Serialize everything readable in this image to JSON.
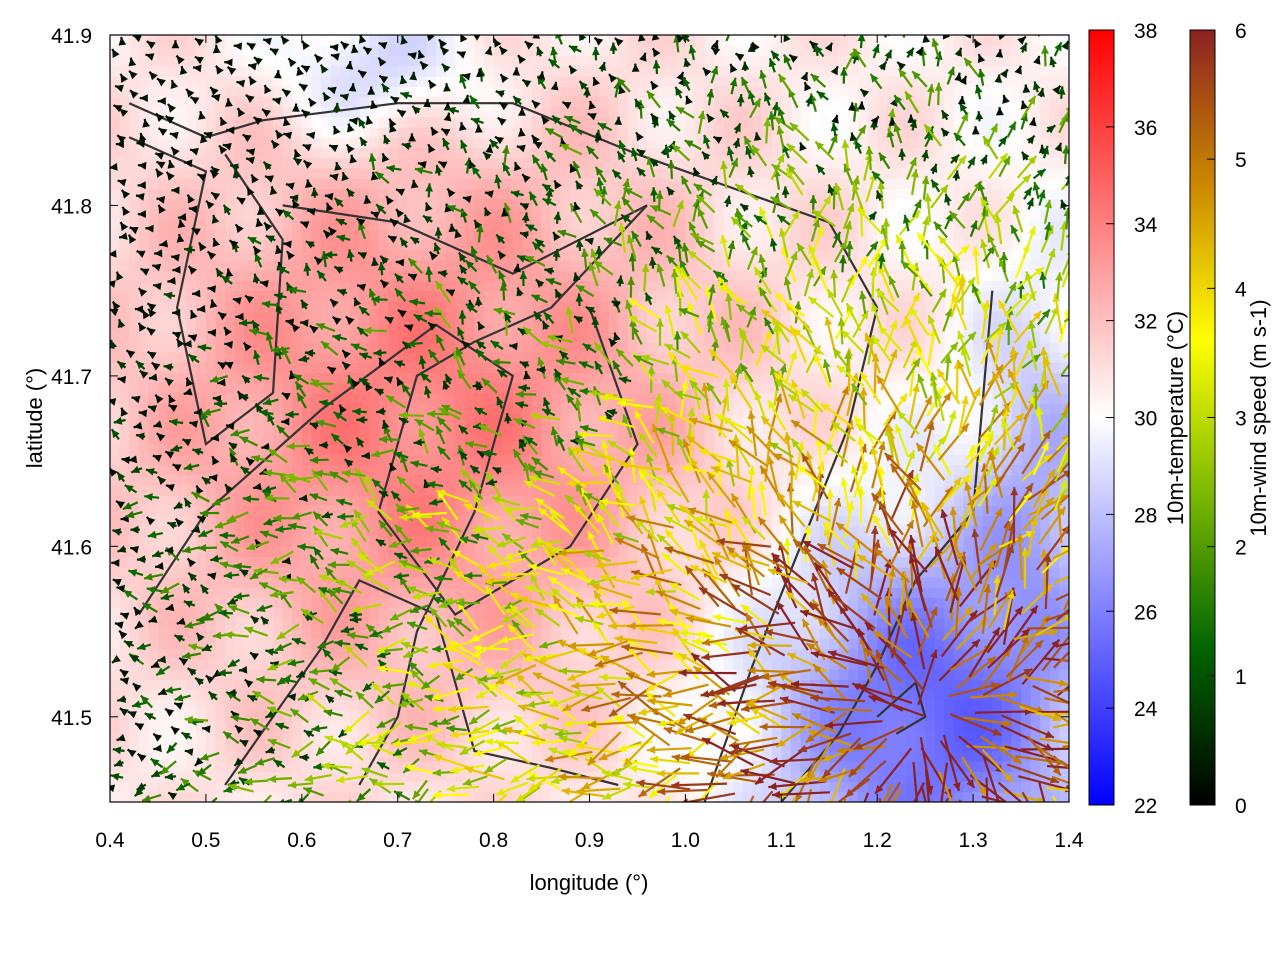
{
  "chart_data": {
    "type": "heatmap",
    "title": "",
    "xlabel": "longitude (°)",
    "ylabel": "latitude (°)",
    "xlim": [
      0.4,
      1.4
    ],
    "ylim": [
      41.45,
      41.9
    ],
    "xticks": [
      "0.4",
      "0.5",
      "0.6",
      "0.7",
      "0.8",
      "0.9",
      "1.0",
      "1.1",
      "1.2",
      "1.3",
      "1.4"
    ],
    "yticks": [
      "41.5",
      "41.6",
      "41.7",
      "41.8",
      "41.9"
    ],
    "colorbars": [
      {
        "label": "10m-temperature (°C)",
        "range": [
          22,
          38
        ],
        "ticks": [
          "22",
          "24",
          "26",
          "28",
          "30",
          "32",
          "34",
          "36",
          "38"
        ],
        "colors": [
          "#0000ff",
          "#ffffff",
          "#ff0000"
        ]
      },
      {
        "label": "10m-wind speed (m s-1)",
        "range": [
          0,
          6
        ],
        "ticks": [
          "0",
          "1",
          "2",
          "3",
          "4",
          "5",
          "6"
        ],
        "colors": [
          "#000000",
          "#006400",
          "#7ab800",
          "#ffff00",
          "#cc8800",
          "#8b2222"
        ]
      }
    ],
    "temperature_field": {
      "description_units": "°C",
      "warm_region": {
        "lon": 0.72,
        "lat": 41.68,
        "value": 34
      },
      "cool_region_southeast": {
        "lon": 1.25,
        "lat": 41.5,
        "value": 25
      },
      "cool_region_north": {
        "lon": 0.68,
        "lat": 41.88,
        "value": 28
      },
      "cool_region_east": {
        "lon": 1.37,
        "lat": 41.65,
        "value": 28
      }
    },
    "contour_lines": [
      {
        "id": "outer-ring",
        "points": [
          [
            0.42,
            41.86
          ],
          [
            0.5,
            41.84
          ],
          [
            0.56,
            41.85
          ],
          [
            0.7,
            41.86
          ],
          [
            0.82,
            41.86
          ],
          [
            0.95,
            41.83
          ],
          [
            1.05,
            41.81
          ],
          [
            1.15,
            41.79
          ],
          [
            1.2,
            41.74
          ],
          [
            1.17,
            41.67
          ],
          [
            1.12,
            41.6
          ],
          [
            1.07,
            41.53
          ],
          [
            1.02,
            41.45
          ]
        ]
      },
      {
        "id": "west-loop",
        "points": [
          [
            0.42,
            41.84
          ],
          [
            0.5,
            41.82
          ],
          [
            0.47,
            41.74
          ],
          [
            0.5,
            41.66
          ],
          [
            0.57,
            41.69
          ],
          [
            0.58,
            41.78
          ],
          [
            0.52,
            41.83
          ]
        ]
      },
      {
        "id": "central-loop",
        "points": [
          [
            0.58,
            41.8
          ],
          [
            0.7,
            41.79
          ],
          [
            0.82,
            41.76
          ],
          [
            0.96,
            41.8
          ],
          [
            0.86,
            41.74
          ],
          [
            0.78,
            41.72
          ],
          [
            0.72,
            41.7
          ],
          [
            0.68,
            41.62
          ],
          [
            0.76,
            41.56
          ],
          [
            0.88,
            41.6
          ],
          [
            0.95,
            41.66
          ],
          [
            0.9,
            41.74
          ]
        ]
      },
      {
        "id": "inner-south",
        "points": [
          [
            0.43,
            41.56
          ],
          [
            0.5,
            41.62
          ],
          [
            0.62,
            41.68
          ],
          [
            0.74,
            41.73
          ],
          [
            0.82,
            41.7
          ],
          [
            0.78,
            41.62
          ],
          [
            0.72,
            41.55
          ],
          [
            0.7,
            41.5
          ],
          [
            0.66,
            41.46
          ]
        ]
      },
      {
        "id": "east-line",
        "points": [
          [
            1.32,
            41.75
          ],
          [
            1.3,
            41.62
          ],
          [
            1.24,
            41.58
          ],
          [
            1.2,
            41.53
          ],
          [
            1.16,
            41.49
          ],
          [
            1.1,
            41.45
          ]
        ]
      },
      {
        "id": "se-small",
        "points": [
          [
            1.2,
            41.5
          ],
          [
            1.24,
            41.52
          ],
          [
            1.25,
            41.5
          ],
          [
            1.22,
            41.49
          ]
        ]
      },
      {
        "id": "south-arc",
        "points": [
          [
            0.52,
            41.46
          ],
          [
            0.57,
            41.5
          ],
          [
            0.62,
            41.54
          ],
          [
            0.66,
            41.58
          ],
          [
            0.74,
            41.56
          ],
          [
            0.78,
            41.48
          ],
          [
            0.86,
            41.47
          ],
          [
            0.93,
            41.46
          ]
        ]
      }
    ],
    "wind_vectors": {
      "units": "m s-1",
      "grid_spacing_deg": 0.02,
      "flow_pattern": "divergent outflow from cool south-east area, weak converging winds over central warm area"
    }
  }
}
